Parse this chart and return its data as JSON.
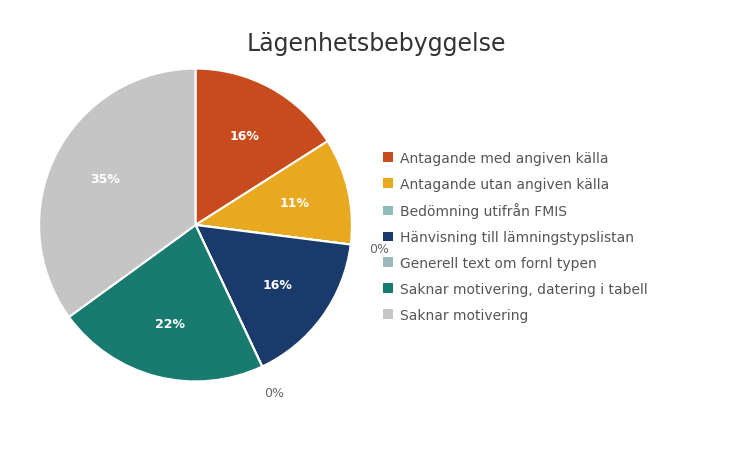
{
  "title": "Lägenhetsbebyggelse",
  "slices": [
    16,
    11,
    0,
    16,
    0,
    22,
    35
  ],
  "labels": [
    "Antagande med angiven källa",
    "Antagande utan angiven källa",
    "Bedömning utifrån FMIS",
    "Hänvisning till lämningstypslistan",
    "Generell text om fornl typen",
    "Saknar motivering, datering i tabell",
    "Saknar motivering"
  ],
  "colors": [
    "#C84B1E",
    "#E8A820",
    "#8BBCBA",
    "#1A3A6B",
    "#9BB8BA",
    "#197A6F",
    "#C5C5C5"
  ],
  "autopct_labels": [
    "16%",
    "11%",
    "0%",
    "16%",
    "0%",
    "22%",
    "35%"
  ],
  "startangle": 90,
  "title_fontsize": 17,
  "legend_fontsize": 10
}
